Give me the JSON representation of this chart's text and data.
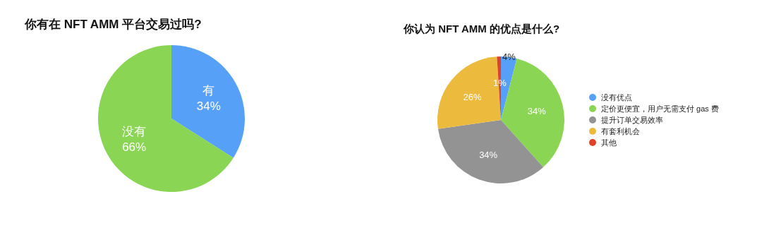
{
  "chart_data": [
    {
      "type": "pie",
      "title": "你有在 NFT AMM 平台交易过吗?",
      "categories": [
        "有",
        "没有"
      ],
      "values": [
        34,
        66
      ],
      "value_labels": [
        "34%",
        "66%"
      ],
      "colors": [
        "#57a0f7",
        "#8ad554"
      ],
      "legend": false
    },
    {
      "type": "pie",
      "title": "你认为 NFT AMM 的优点是什么?",
      "categories": [
        "没有优点",
        "定价更便宜，用户无需支付 gas 费",
        "提升订单交易效率",
        "有套利机会",
        "其他"
      ],
      "values": [
        4,
        34,
        34,
        26,
        1
      ],
      "value_labels": [
        "4%",
        "34%",
        "34%",
        "26%",
        "1%"
      ],
      "colors": [
        "#57a0f7",
        "#8ad554",
        "#939393",
        "#ecbb3d",
        "#e0412a"
      ],
      "legend": "right"
    }
  ]
}
